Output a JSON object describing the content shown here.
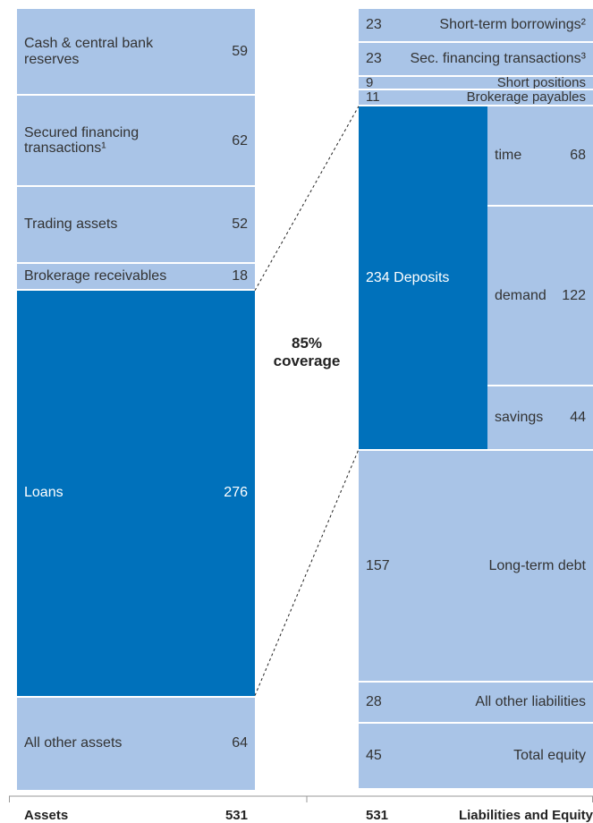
{
  "chart_data": {
    "type": "stacked",
    "colors": {
      "light": "#a9c4e7",
      "dark": "#0071bb"
    },
    "annotation_lines": [
      "85%",
      "coverage"
    ],
    "columns": [
      {
        "name": "Assets",
        "total": 531,
        "items": [
          {
            "label": "Cash & central bank reserves",
            "value": 59
          },
          {
            "label": "Secured financing transactions¹",
            "value": 62
          },
          {
            "label": "Trading assets",
            "value": 52
          },
          {
            "label": "Brokerage receivables",
            "value": 18
          },
          {
            "label": "Loans",
            "value": 276,
            "highlight": true
          },
          {
            "label": "All other assets",
            "value": 64
          }
        ]
      },
      {
        "name": "Liabilities and Equity",
        "total": 531,
        "items": [
          {
            "label": "Short-term borrowings²",
            "value": 23
          },
          {
            "label": "Sec. financing transactions³",
            "value": 23
          },
          {
            "label": "Short positions",
            "value": 9
          },
          {
            "label": "Brokerage payables",
            "value": 11
          },
          {
            "label": "Deposits",
            "value": 234,
            "highlight": true,
            "breakdown": [
              {
                "label": "time",
                "value": 68
              },
              {
                "label": "demand",
                "value": 122
              },
              {
                "label": "savings",
                "value": 44
              }
            ]
          },
          {
            "label": "Long-term debt",
            "value": 157
          },
          {
            "label": "All other liabilities",
            "value": 28
          },
          {
            "label": "Total equity",
            "value": 45
          }
        ]
      }
    ]
  }
}
